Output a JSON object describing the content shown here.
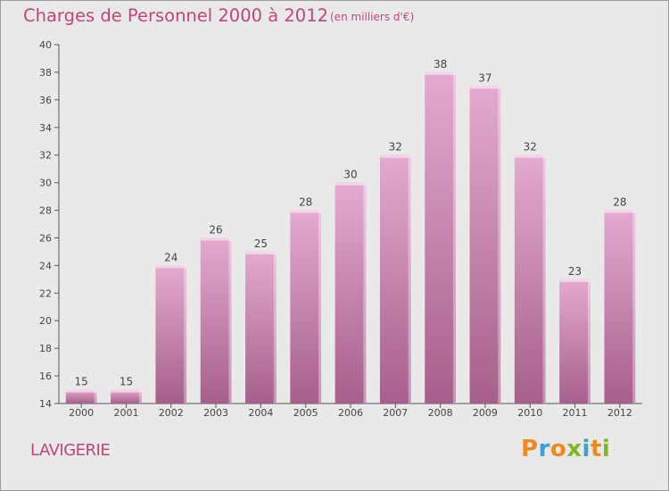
{
  "header": {
    "title": "Charges de Personnel 2000 à 2012",
    "subtitle": "(en milliers d'€)"
  },
  "footer": {
    "commune": "LAVIGERIE",
    "logo": "Proxiti"
  },
  "colors": {
    "title": "#c0467a",
    "bar_top": "#e2a7cc",
    "bar_bottom": "#a8608e",
    "background": "#e9e9e9"
  },
  "chart_data": {
    "type": "bar",
    "title": "Charges de Personnel 2000 à 2012",
    "subtitle": "(en milliers d'€)",
    "categories": [
      "2000",
      "2001",
      "2002",
      "2003",
      "2004",
      "2005",
      "2006",
      "2007",
      "2008",
      "2009",
      "2010",
      "2011",
      "2012"
    ],
    "values": [
      15,
      15,
      24,
      26,
      25,
      28,
      30,
      32,
      38,
      37,
      32,
      23,
      28
    ],
    "ylim": [
      14,
      40
    ],
    "yticks": [
      14,
      16,
      18,
      20,
      22,
      24,
      26,
      28,
      30,
      32,
      34,
      36,
      38,
      40
    ],
    "grid": false,
    "legend": "none"
  }
}
